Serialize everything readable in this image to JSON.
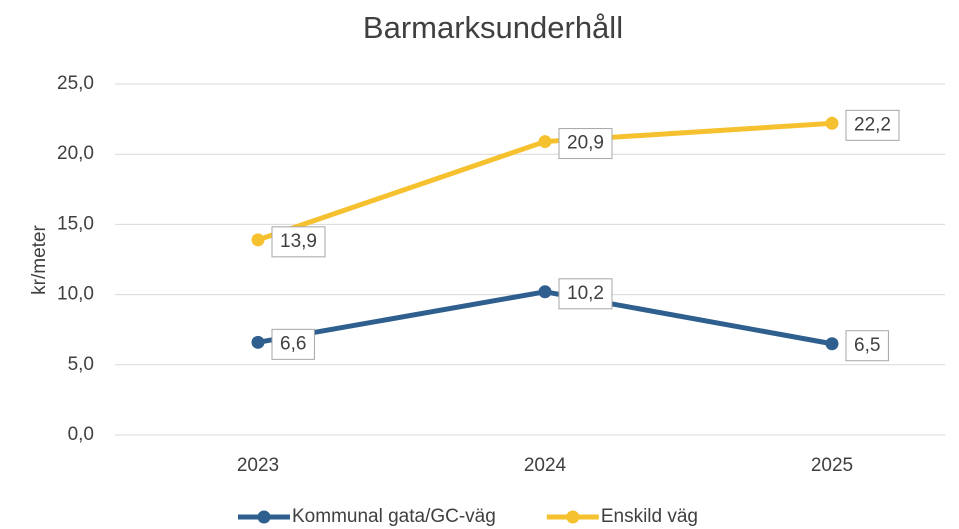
{
  "chart_data": {
    "type": "line",
    "title": "Barmarksunderhåll",
    "y_label": "kr/meter",
    "categories": [
      "2023",
      "2024",
      "2025"
    ],
    "series": [
      {
        "name": "Kommunal gata/GC-väg",
        "color": "#2e5f8e",
        "values": [
          6.6,
          10.2,
          6.5
        ],
        "value_labels": [
          "6,6",
          "10,2",
          "6,5"
        ]
      },
      {
        "name": "Enskild väg",
        "color": "#f6c12f",
        "values": [
          13.9,
          20.9,
          22.2
        ],
        "value_labels": [
          "13,9",
          "20,9",
          "22,2"
        ]
      }
    ],
    "ylim": [
      0,
      25
    ],
    "yticks": [
      {
        "value": 0,
        "label": "0,0"
      },
      {
        "value": 5,
        "label": "5,0"
      },
      {
        "value": 10,
        "label": "10,0"
      },
      {
        "value": 15,
        "label": "15,0"
      },
      {
        "value": 20,
        "label": "20,0"
      },
      {
        "value": 25,
        "label": "25,0"
      }
    ],
    "grid": true,
    "legend": "bottom"
  }
}
